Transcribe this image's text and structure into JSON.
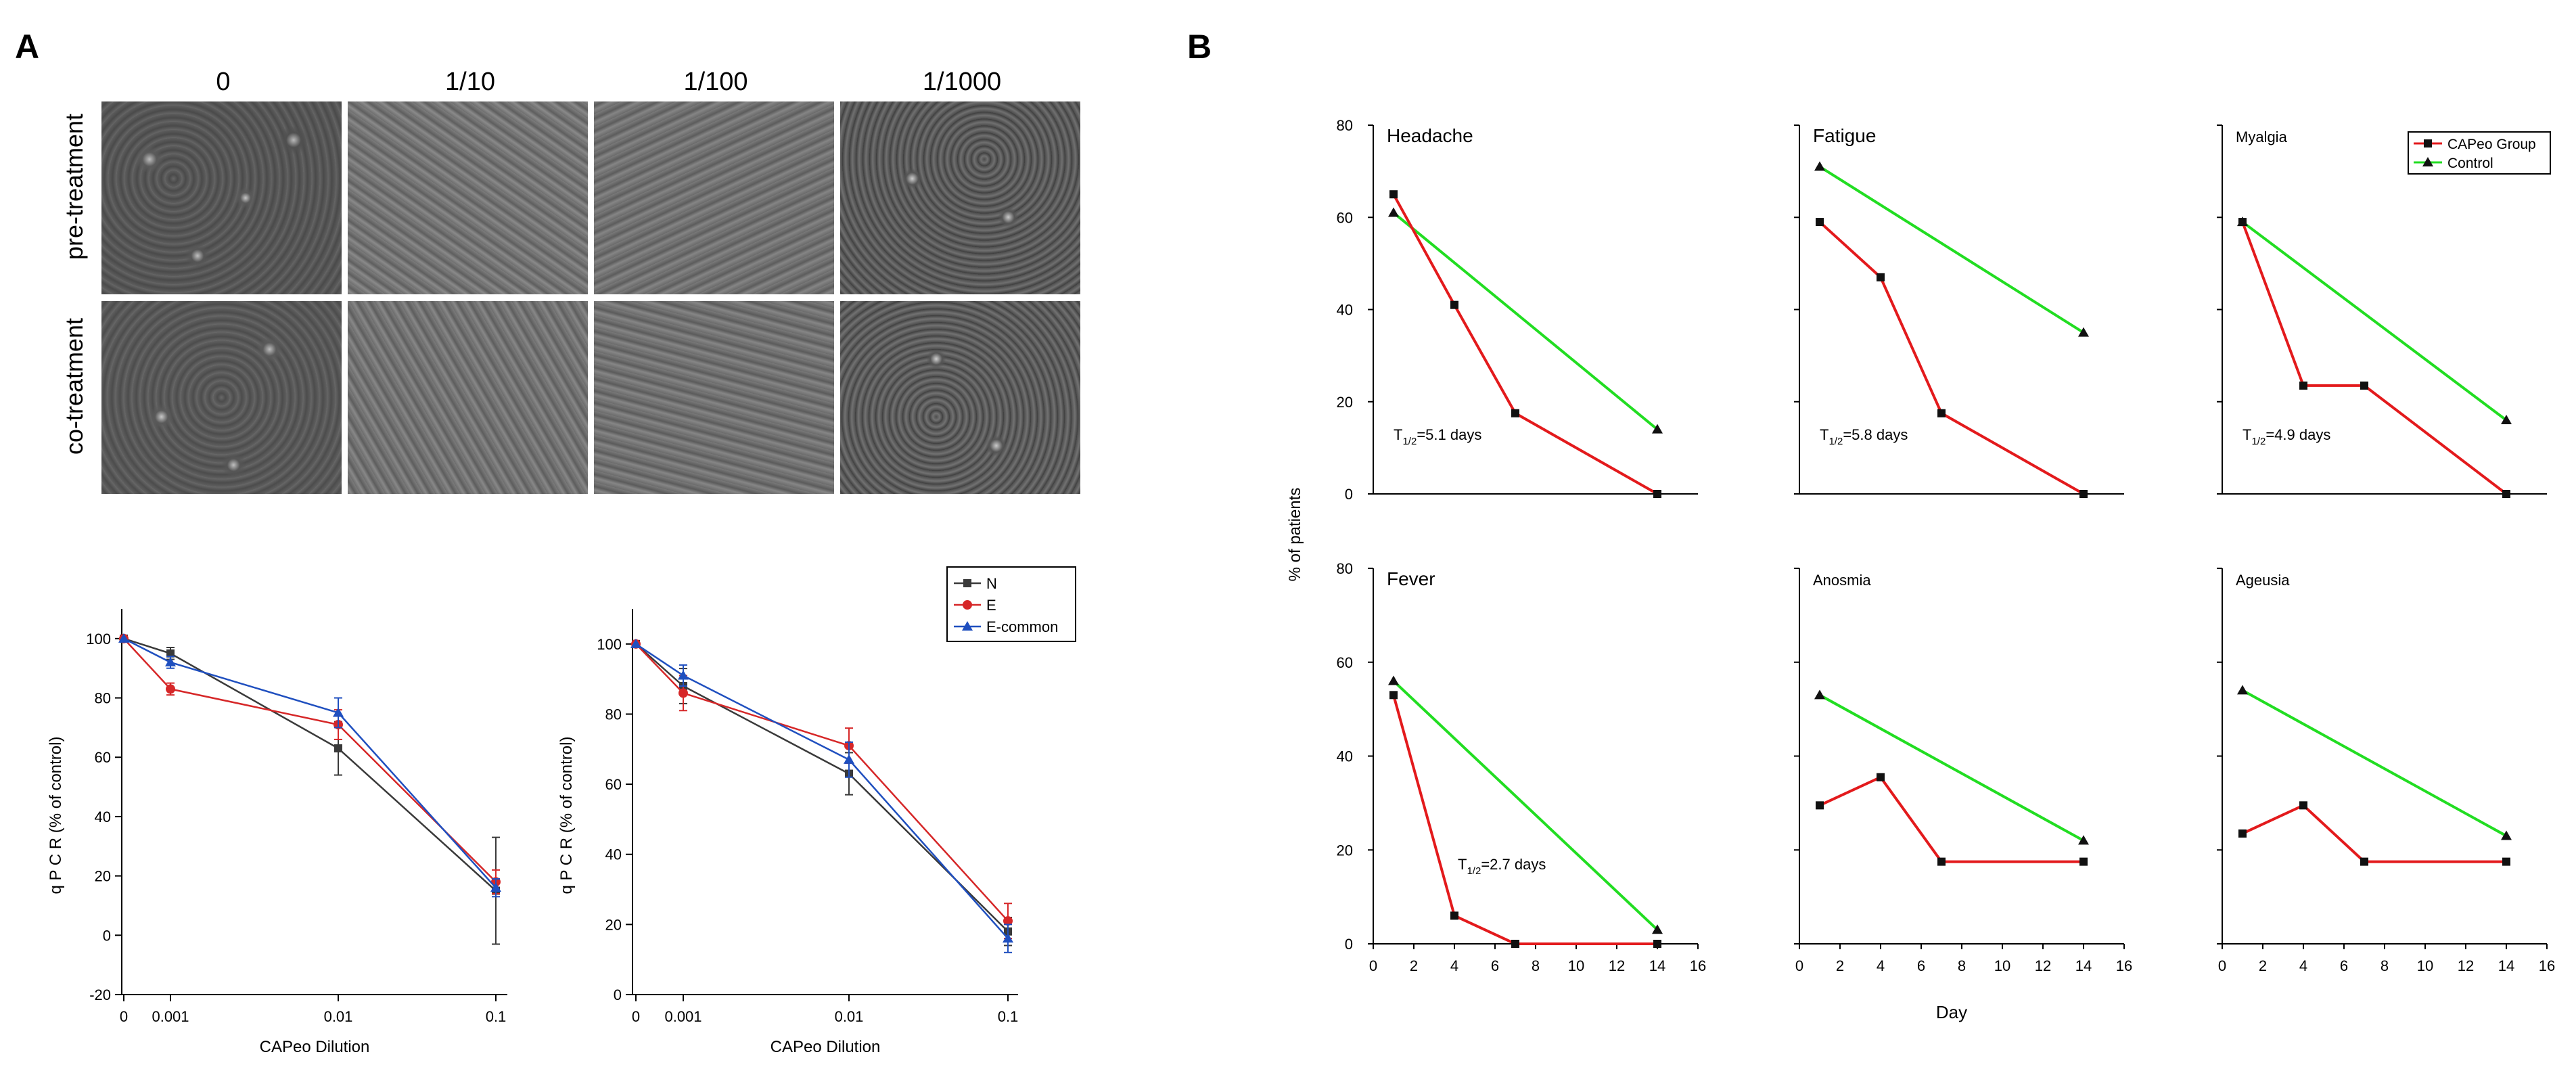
{
  "panels": {
    "a": "A",
    "b": "B"
  },
  "microscopy": {
    "columns": [
      "0",
      "1/10",
      "1/100",
      "1/1000"
    ],
    "rows": [
      "pre-treatment",
      "co-treatment"
    ]
  },
  "colors": {
    "N": "#3a3a3a",
    "E": "#d62728",
    "E_common": "#1f4fbf",
    "capeo": "#e31a1c",
    "control": "#22dd22"
  },
  "chart_data": [
    {
      "type": "line",
      "id": "qpcr-left",
      "title": "",
      "xlabel": "CAPeo Dilution",
      "ylabel": "q P C R  (% of control)",
      "x_ticks": [
        "0",
        "0.001",
        "0.01",
        "0.1"
      ],
      "ylim": [
        -20,
        110
      ],
      "y_ticks": [
        -20,
        0,
        20,
        40,
        60,
        80,
        100
      ],
      "series": [
        {
          "name": "N",
          "values": [
            100,
            95,
            63,
            15
          ],
          "errors": [
            1,
            2,
            9,
            18
          ]
        },
        {
          "name": "E",
          "values": [
            100,
            83,
            71,
            18
          ],
          "errors": [
            1,
            2,
            5,
            4
          ]
        },
        {
          "name": "E-common",
          "values": [
            100,
            92,
            75,
            16
          ],
          "errors": [
            1,
            2,
            5,
            3
          ]
        }
      ]
    },
    {
      "type": "line",
      "id": "qpcr-right",
      "title": "",
      "xlabel": "CAPeo Dilution",
      "ylabel": "q P C R  (% of control)",
      "x_ticks": [
        "0",
        "0.001",
        "0.01",
        "0.1"
      ],
      "ylim": [
        0,
        110
      ],
      "y_ticks": [
        0,
        20,
        40,
        60,
        80,
        100
      ],
      "legend": [
        "N",
        "E",
        "E-common"
      ],
      "series": [
        {
          "name": "N",
          "values": [
            100,
            88,
            63,
            18
          ],
          "errors": [
            1,
            5,
            6,
            4
          ]
        },
        {
          "name": "E",
          "values": [
            100,
            86,
            71,
            21
          ],
          "errors": [
            1,
            5,
            5,
            5
          ]
        },
        {
          "name": "E-common",
          "values": [
            100,
            91,
            67,
            16
          ],
          "errors": [
            1,
            3,
            5,
            4
          ]
        }
      ]
    },
    {
      "type": "line",
      "id": "symptoms",
      "xlabel": "Day",
      "ylabel": "% of patients",
      "x_ticks": [
        0,
        2,
        4,
        6,
        8,
        10,
        12,
        14,
        16
      ],
      "y_ticks": [
        0,
        20,
        40,
        60,
        80
      ],
      "xlim": [
        0,
        16
      ],
      "ylim": [
        0,
        80
      ],
      "legend": [
        "CAPeo Group",
        "Control"
      ],
      "subplots": [
        {
          "title": "Headache",
          "capeo": {
            "x": [
              1,
              4,
              7,
              14
            ],
            "y": [
              65,
              41,
              17.5,
              0
            ]
          },
          "control": {
            "x": [
              1,
              14
            ],
            "y": [
              61,
              14
            ]
          },
          "t_half": {
            "pre": "T",
            "sub": "1/2",
            "post": "=5.1 days"
          }
        },
        {
          "title": "Fatigue",
          "capeo": {
            "x": [
              1,
              4,
              7,
              14
            ],
            "y": [
              59,
              47,
              17.5,
              0
            ]
          },
          "control": {
            "x": [
              1,
              14
            ],
            "y": [
              71,
              35
            ]
          },
          "t_half": {
            "pre": "T",
            "sub": "1/2",
            "post": "=5.8 days"
          }
        },
        {
          "title": "Myalgia",
          "capeo": {
            "x": [
              1,
              4,
              7,
              14
            ],
            "y": [
              59,
              23.5,
              23.5,
              0
            ]
          },
          "control": {
            "x": [
              1,
              14
            ],
            "y": [
              59,
              16
            ]
          },
          "t_half": {
            "pre": "T",
            "sub": "1/2",
            "post": "=4.9 days"
          }
        },
        {
          "title": "Fever",
          "capeo": {
            "x": [
              1,
              4,
              7,
              14
            ],
            "y": [
              53,
              6,
              0,
              0
            ]
          },
          "control": {
            "x": [
              1,
              14
            ],
            "y": [
              56,
              3
            ]
          },
          "t_half": {
            "pre": "T",
            "sub": "1/2",
            "post": "=2.7 days"
          }
        },
        {
          "title": "Anosmia",
          "capeo": {
            "x": [
              1,
              4,
              7,
              14
            ],
            "y": [
              29.5,
              35.5,
              17.5,
              17.5
            ]
          },
          "control": {
            "x": [
              1,
              14
            ],
            "y": [
              53,
              22
            ]
          }
        },
        {
          "title": "Ageusia",
          "capeo": {
            "x": [
              1,
              4,
              7,
              14
            ],
            "y": [
              23.5,
              29.5,
              17.5,
              17.5
            ]
          },
          "control": {
            "x": [
              1,
              14
            ],
            "y": [
              54,
              23
            ]
          }
        }
      ]
    }
  ]
}
